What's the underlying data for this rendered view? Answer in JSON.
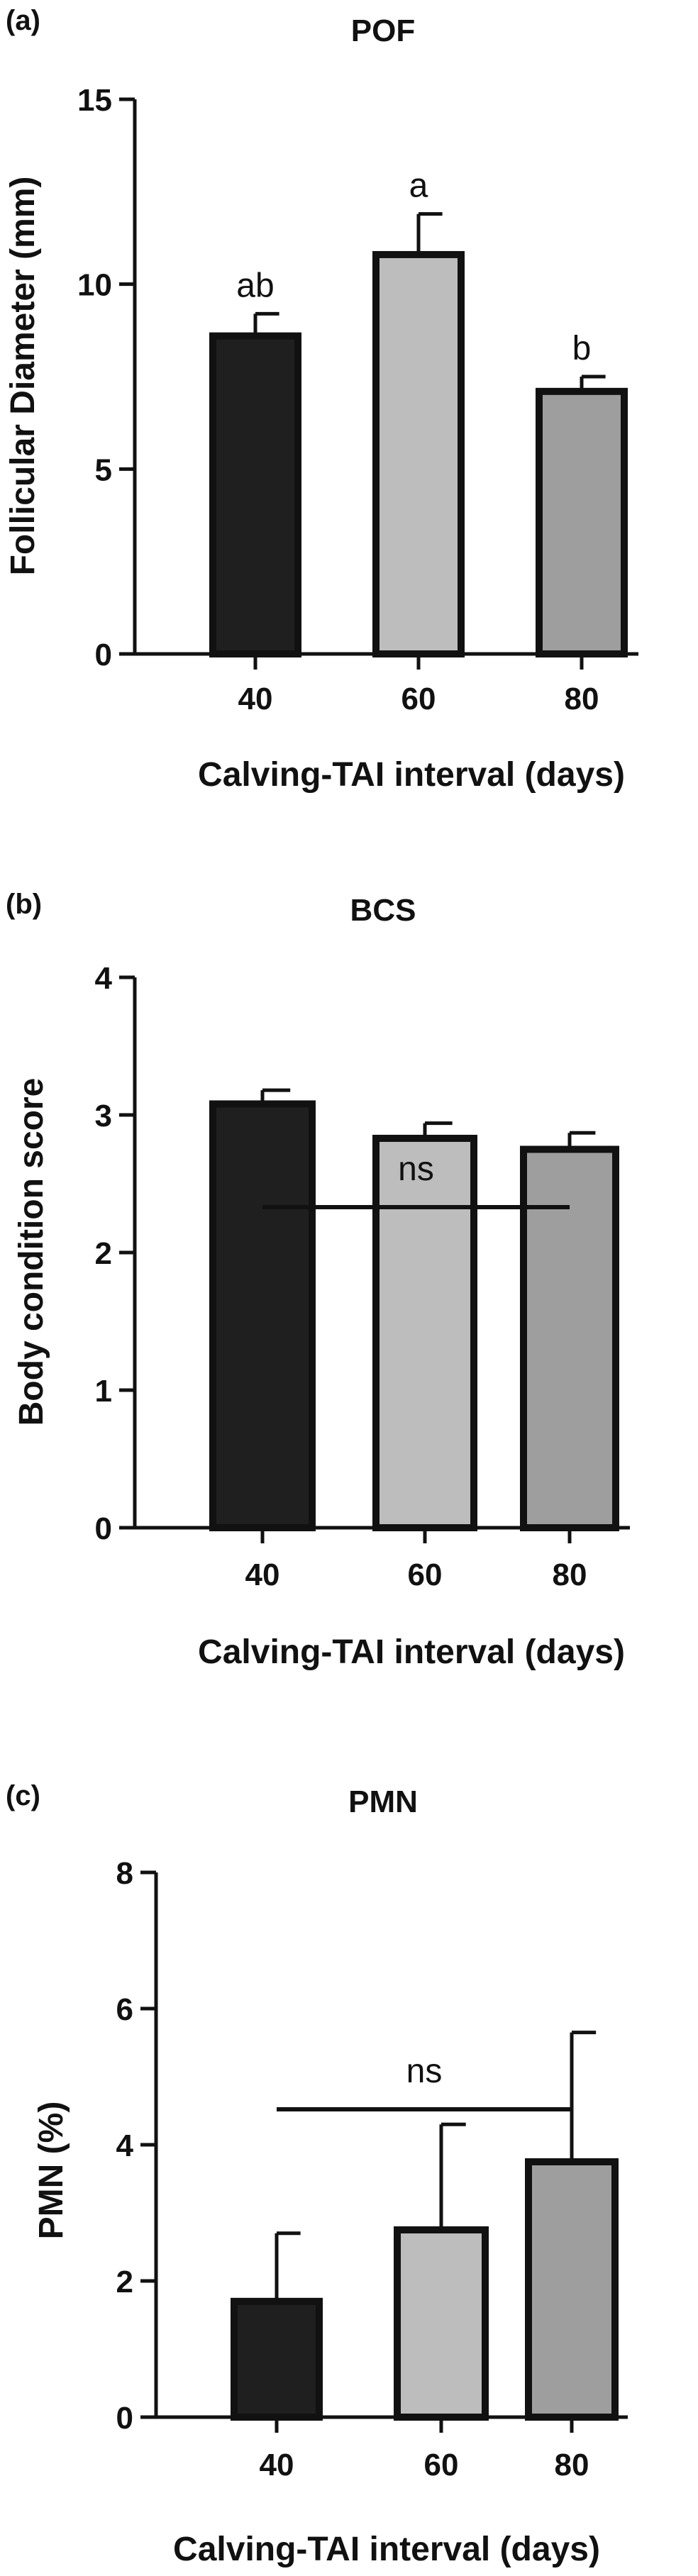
{
  "chart_data": [
    {
      "type": "bar",
      "panel_label": "(a)",
      "title": "POF",
      "xlabel": "Calving-TAI interval (days)",
      "ylabel": "Follicular Diameter (mm)",
      "categories": [
        "40",
        "60",
        "80"
      ],
      "values": [
        8.6,
        10.8,
        7.1
      ],
      "errors": [
        0.6,
        1.1,
        0.4
      ],
      "letters": [
        "ab",
        "a",
        "b"
      ],
      "bar_colors": [
        "#1f1f1f",
        "#bdbdbd",
        "#9e9e9e"
      ],
      "ylim": [
        0,
        15
      ],
      "yticks": [
        0,
        5,
        10,
        15
      ],
      "grid": false
    },
    {
      "type": "bar",
      "panel_label": "(b)",
      "title": "BCS",
      "xlabel": "Calving-TAI interval (days)",
      "ylabel": "Body condition score",
      "categories": [
        "40",
        "60",
        "80"
      ],
      "values": [
        3.08,
        2.83,
        2.75
      ],
      "errors": [
        0.1,
        0.11,
        0.12
      ],
      "significance": "ns",
      "bar_colors": [
        "#1f1f1f",
        "#bdbdbd",
        "#9e9e9e"
      ],
      "ylim": [
        0,
        4
      ],
      "yticks": [
        0,
        1,
        2,
        3,
        4
      ],
      "grid": false
    },
    {
      "type": "bar",
      "panel_label": "(c)",
      "title": "PMN",
      "xlabel": "Calving-TAI interval (days)",
      "ylabel": "PMN (%)",
      "categories": [
        "40",
        "60",
        "80"
      ],
      "values": [
        1.7,
        2.75,
        3.75
      ],
      "errors": [
        1.0,
        1.55,
        1.9
      ],
      "significance": "ns",
      "bar_colors": [
        "#1f1f1f",
        "#bdbdbd",
        "#9e9e9e"
      ],
      "ylim": [
        0,
        8
      ],
      "yticks": [
        0,
        2,
        4,
        6,
        8
      ],
      "grid": false
    }
  ]
}
